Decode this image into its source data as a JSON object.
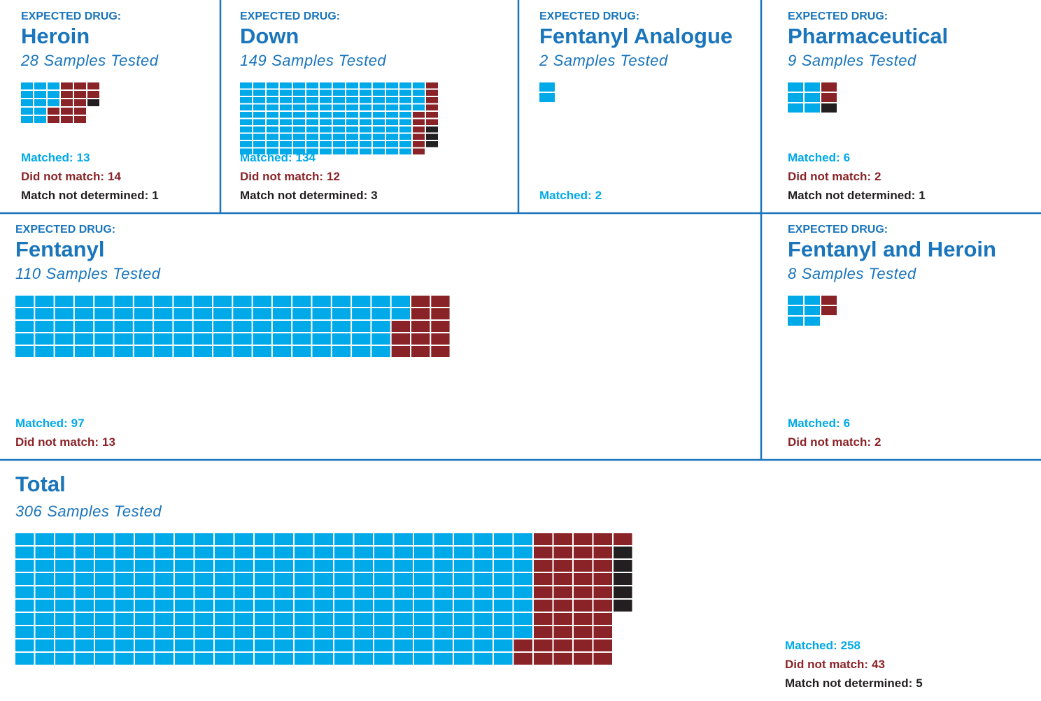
{
  "chart_data": {
    "type": "waffle",
    "panels": [
      {
        "label": "EXPECTED DRUG:",
        "name": "Heroin",
        "samples": 28,
        "samples_text": "Samples Tested",
        "series": [
          {
            "name": "Matched:",
            "color": "#00a9e8",
            "value": 13
          },
          {
            "name": "Did not match:",
            "color": "#8a2327",
            "value": 14
          },
          {
            "name": "Match not determined:",
            "color": "#231f20",
            "value": 1
          }
        ]
      },
      {
        "label": "EXPECTED DRUG:",
        "name": "Down",
        "samples": 149,
        "samples_text": "Samples Tested",
        "series": [
          {
            "name": "Matched:",
            "color": "#00a9e8",
            "value": 134
          },
          {
            "name": "Did not match:",
            "color": "#8a2327",
            "value": 12
          },
          {
            "name": "Match not determined:",
            "color": "#231f20",
            "value": 3
          }
        ]
      },
      {
        "label": "EXPECTED DRUG:",
        "name": "Fentanyl Analogue",
        "samples": 2,
        "samples_text": "Samples Tested",
        "series": [
          {
            "name": "Matched:",
            "color": "#00a9e8",
            "value": 2
          }
        ]
      },
      {
        "label": "EXPECTED DRUG:",
        "name": "Pharmaceutical",
        "samples": 9,
        "samples_text": "Samples Tested",
        "series": [
          {
            "name": "Matched:",
            "color": "#00a9e8",
            "value": 6
          },
          {
            "name": "Did not match:",
            "color": "#8a2327",
            "value": 2
          },
          {
            "name": "Match not determined:",
            "color": "#231f20",
            "value": 1
          }
        ]
      },
      {
        "label": "EXPECTED DRUG:",
        "name": "Fentanyl",
        "samples": 110,
        "samples_text": "Samples Tested",
        "series": [
          {
            "name": "Matched:",
            "color": "#00a9e8",
            "value": 97
          },
          {
            "name": "Did not match:",
            "color": "#8a2327",
            "value": 13
          }
        ]
      },
      {
        "label": "EXPECTED DRUG:",
        "name": "Fentanyl and Heroin",
        "samples": 8,
        "samples_text": "Samples Tested",
        "series": [
          {
            "name": "Matched:",
            "color": "#00a9e8",
            "value": 6
          },
          {
            "name": "Did not match:",
            "color": "#8a2327",
            "value": 2
          }
        ]
      },
      {
        "name": "Total",
        "samples": 306,
        "samples_text": "Samples Tested",
        "series": [
          {
            "name": "Matched:",
            "color": "#00a9e8",
            "value": 258
          },
          {
            "name": "Did not match:",
            "color": "#8a2327",
            "value": 43
          },
          {
            "name": "Match not determined:",
            "color": "#231f20",
            "value": 5
          }
        ]
      }
    ]
  }
}
